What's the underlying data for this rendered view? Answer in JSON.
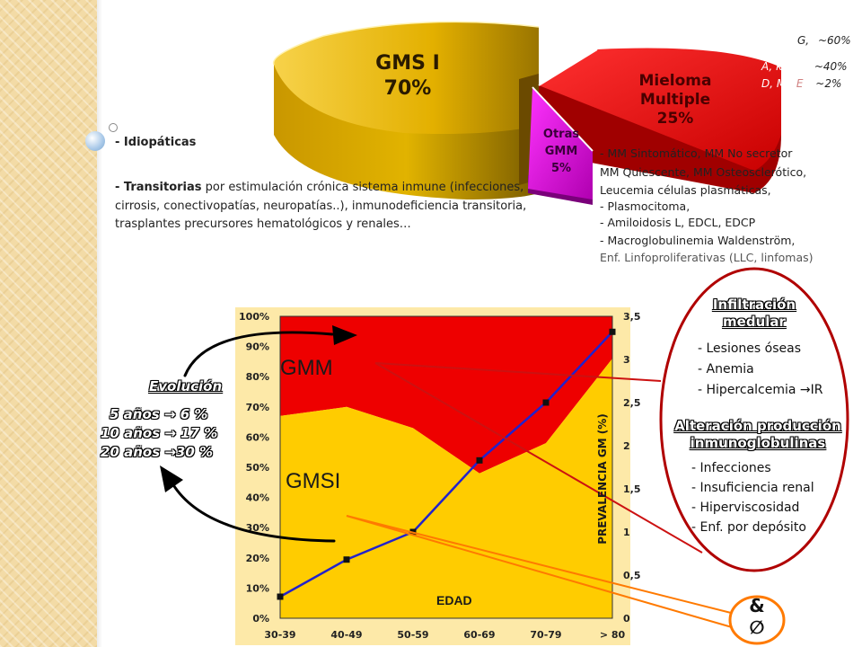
{
  "pie": {
    "gms1": {
      "line1": "GMS I",
      "line2": "70%"
    },
    "mieloma": {
      "line1": "Mieloma",
      "line2": "Multiple",
      "line3": "25%"
    },
    "otras": {
      "line1": "Otras",
      "line2": "GMM",
      "line3": "5%"
    },
    "colors": {
      "gms1": "#e6b800",
      "mieloma": "#e00000",
      "otras": "#cc00cc"
    }
  },
  "isotypes": {
    "row1": {
      "label": "G,",
      "value": "~60%"
    },
    "row2": {
      "label": "A, κ ó λ,",
      "value": "~40%"
    },
    "row3": {
      "label_a": "D, M,",
      "label_b": "E",
      "value": "~2%"
    }
  },
  "left_text": {
    "idiopaticas": "-  Idiopáticas",
    "transitorias_bold": "-  Transitorias",
    "transitorias_rest": " por estimulación crónica sistema inmune (infecciones,",
    "line2": "cirrosis, conectivopatías, neuropatías..), inmunodeficiencia transitoria,",
    "line3": "trasplantes precursores hematológicos y renales…"
  },
  "conditions": [
    "- MM Sintomático,   MM No secretor",
    "MM Quiescente, MM Osteosclerótico,",
    "  Leucemia células plasmáticas,",
    "- Plasmocitoma,",
    "- Amiloidosis L,   EDCL,     EDCP",
    "- Macroglobulinemia Waldenström,",
    "Enf. Linfoproliferativas (LLC, linfomas)"
  ],
  "evolution": {
    "title": "Evolución",
    "line1": "5 años  → 6 %",
    "line2": "10 años → 17 %",
    "line3": "20 años →30 %"
  },
  "chart_data": {
    "type": "area",
    "categories": [
      "30-39",
      "40-49",
      "50-59",
      "60-69",
      "70-79",
      "> 80"
    ],
    "left_axis_ticks": [
      "0%",
      "10%",
      "20%",
      "30%",
      "40%",
      "50%",
      "60%",
      "70%",
      "80%",
      "90%",
      "100%"
    ],
    "right_axis_ticks": [
      "0",
      "0,5",
      "1",
      "1,5",
      "2",
      "2,5",
      "3",
      "3,5"
    ],
    "xlabel": "EDAD",
    "ylabel_right": "PREVALENCIA GM (%)",
    "ylim_left": [
      0,
      100
    ],
    "ylim_right": [
      0,
      3.5
    ],
    "area_labels": {
      "gmm": "GMM",
      "gmsi": "GMSI"
    },
    "series": [
      {
        "name": "GMSI",
        "axis": "left",
        "values": [
          67,
          70,
          63,
          48,
          58,
          86
        ]
      },
      {
        "name": "GMM",
        "axis": "left",
        "values": [
          100,
          100,
          100,
          100,
          100,
          100
        ]
      },
      {
        "axis": "right",
        "values": [
          0.25,
          0.68,
          1.0,
          1.83,
          2.5,
          3.32
        ]
      }
    ],
    "colors": {
      "gmm": "#ee0000",
      "gmsi": "#ffcc00",
      "line": "#2222cc",
      "bg": "#fde9a8"
    }
  },
  "ellipse": {
    "heading1_l1": "Infiltración",
    "heading1_l2": "medular",
    "items1": [
      "- Lesiones óseas",
      "- Anemia",
      "- Hipercalcemia →IR"
    ],
    "heading2_l1": "Alteración producción",
    "heading2_l2": "inmunoglobulinas",
    "items2": [
      "- Infecciones",
      "- Insuficiencia renal",
      "- Hiperviscosidad",
      "- Enf. por depósito"
    ]
  },
  "small_ellipse": {
    "line1": "&",
    "line2": "∅"
  }
}
